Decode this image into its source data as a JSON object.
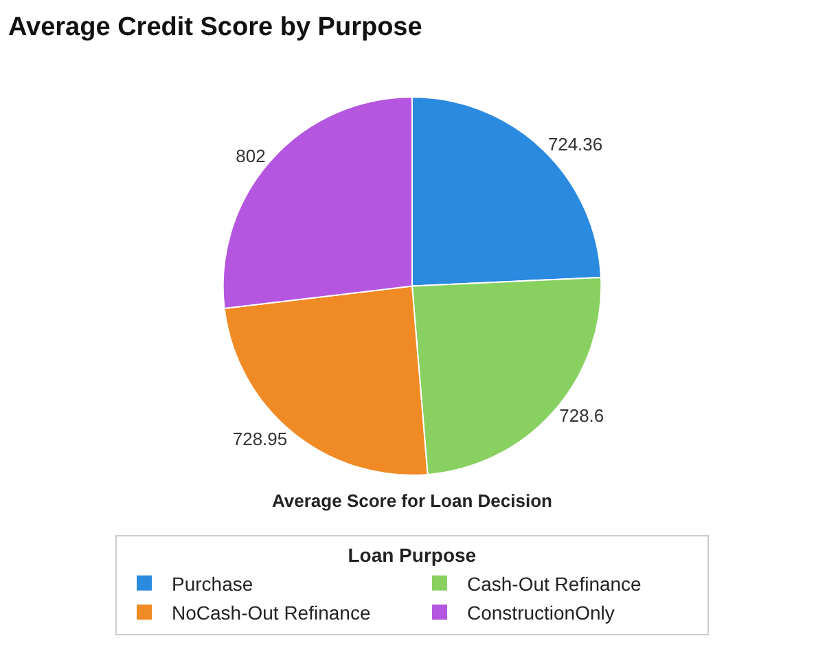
{
  "chart_data": {
    "type": "pie",
    "title": "Average Credit Score by Purpose",
    "subtitle": "Average Score for Loan Decision",
    "legend_title": "Loan Purpose",
    "categories": [
      "Purchase",
      "Cash-Out Refinance",
      "NoCash-Out Refinance",
      "ConstructionOnly"
    ],
    "values": [
      724.36,
      728.6,
      728.95,
      802
    ],
    "colors": [
      "#2a8ae0",
      "#88d060",
      "#f08a24",
      "#b456e0"
    ],
    "data_labels": true,
    "legend": "bottom"
  }
}
